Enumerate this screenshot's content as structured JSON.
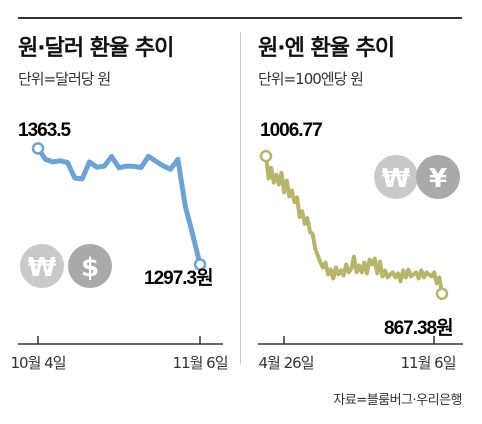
{
  "source": "자료=블룸버그·우리은행",
  "icons": {
    "won_symbol": "₩",
    "dollar_symbol": "$",
    "yen_symbol": "¥",
    "coin_light": "#c9c9c9",
    "coin_dark": "#a9a9a9"
  },
  "chart_data": [
    {
      "type": "line",
      "title": "원·달러 환율 추이",
      "unit_label": "단위=달러당 원",
      "color": "#6ea2d2",
      "x_start_label": "10월 4일",
      "x_end_label": "11월 6일",
      "start_label": "1363.5",
      "end_label": "1297.3원",
      "ylim": [
        1285,
        1370
      ],
      "values": [
        1363.5,
        1357.2,
        1355.8,
        1356.4,
        1355.5,
        1346.6,
        1346.1,
        1355.8,
        1352.8,
        1353.4,
        1358.9,
        1352.5,
        1353.4,
        1353.2,
        1352.6,
        1359.0,
        1356.2,
        1353.5,
        1351.6,
        1357.3,
        1330.5,
        1314.6,
        1297.3
      ]
    },
    {
      "type": "line",
      "title": "원·엔 환율 추이",
      "unit_label": "단위=100엔당 원",
      "color": "#b9b46c",
      "x_start_label": "4월 26일",
      "x_end_label": "11월 6일",
      "start_label": "1006.77",
      "end_label": "867.38원",
      "ylim": [
        855,
        1015
      ],
      "values": [
        1006.77,
        984,
        995,
        980,
        988,
        978,
        990,
        970,
        982,
        966,
        972,
        960,
        965,
        945,
        951,
        938,
        944,
        930,
        928,
        913,
        906,
        899,
        894,
        899,
        887,
        892,
        883,
        894,
        887,
        891,
        886,
        897,
        889,
        893,
        905,
        889,
        896,
        889,
        899,
        888,
        902,
        897,
        903,
        888,
        900,
        885,
        891,
        884,
        887,
        889,
        884,
        888,
        880,
        891,
        884,
        892,
        885,
        887,
        889,
        883,
        891,
        884,
        889,
        887,
        885,
        889,
        878,
        884,
        867.38
      ]
    }
  ]
}
